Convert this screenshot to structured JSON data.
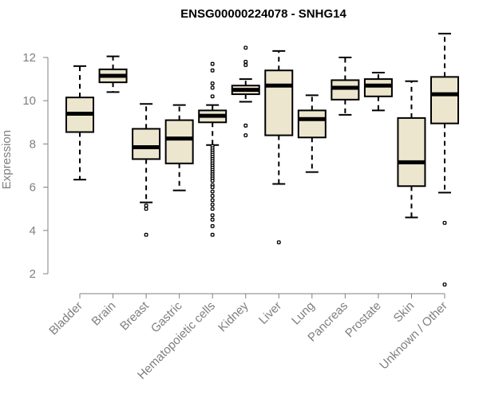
{
  "chart_data": {
    "type": "boxplot",
    "title": "ENSG00000224078 - SNHG14",
    "xlabel": "",
    "ylabel": "Expression",
    "ylim": [
      1.2,
      13.3
    ],
    "yticks": [
      2,
      4,
      6,
      8,
      10,
      12
    ],
    "ytick_labels": [
      "2",
      "4",
      "6",
      "8",
      "10",
      "12"
    ],
    "box_fill": "#ede6cf",
    "stroke_color": "#000000",
    "axis_color": "#808080",
    "categories": [
      "Bladder",
      "Brain",
      "Breast",
      "Gastric",
      "Hematopoietic cells",
      "Kidney",
      "Liver",
      "Lung",
      "Pancreas",
      "Prostate",
      "Skin",
      "Unknown / Other"
    ],
    "boxes": [
      {
        "category": "Bladder",
        "whisker_low": 6.35,
        "q1": 8.55,
        "median": 9.4,
        "q3": 10.15,
        "whisker_high": 11.6,
        "outliers": []
      },
      {
        "category": "Brain",
        "whisker_low": 10.4,
        "q1": 10.85,
        "median": 11.15,
        "q3": 11.45,
        "whisker_high": 12.05,
        "outliers": []
      },
      {
        "category": "Breast",
        "whisker_low": 5.3,
        "q1": 7.3,
        "median": 7.85,
        "q3": 8.7,
        "whisker_high": 9.85,
        "outliers": [
          5.15,
          5.0,
          3.8
        ]
      },
      {
        "category": "Gastric",
        "whisker_low": 5.85,
        "q1": 7.1,
        "median": 8.25,
        "q3": 9.1,
        "whisker_high": 9.8,
        "outliers": []
      },
      {
        "category": "Hematopoietic cells",
        "whisker_low": 7.95,
        "q1": 9.0,
        "median": 9.3,
        "q3": 9.55,
        "whisker_high": 9.8,
        "outliers": [
          11.7,
          11.4,
          10.8,
          10.6,
          10.2,
          7.9,
          7.8,
          7.7,
          7.6,
          7.5,
          7.4,
          7.3,
          7.2,
          7.1,
          7.0,
          6.9,
          6.8,
          6.7,
          6.6,
          6.5,
          6.4,
          6.3,
          6.1,
          6.0,
          5.8,
          5.6,
          5.4,
          5.2,
          5.0,
          4.7,
          4.5,
          4.2,
          3.8
        ]
      },
      {
        "category": "Kidney",
        "whisker_low": 9.95,
        "q1": 10.3,
        "median": 10.5,
        "q3": 10.7,
        "whisker_high": 11.0,
        "outliers": [
          12.45,
          11.8,
          11.65,
          8.85,
          8.4
        ]
      },
      {
        "category": "Liver",
        "whisker_low": 6.15,
        "q1": 8.4,
        "median": 10.7,
        "q3": 11.4,
        "whisker_high": 12.3,
        "outliers": [
          3.45
        ]
      },
      {
        "category": "Lung",
        "whisker_low": 6.7,
        "q1": 8.3,
        "median": 9.15,
        "q3": 9.55,
        "whisker_high": 10.25,
        "outliers": []
      },
      {
        "category": "Pancreas",
        "whisker_low": 9.35,
        "q1": 10.05,
        "median": 10.6,
        "q3": 10.95,
        "whisker_high": 12.0,
        "outliers": []
      },
      {
        "category": "Prostate",
        "whisker_low": 9.55,
        "q1": 10.2,
        "median": 10.7,
        "q3": 11.0,
        "whisker_high": 11.3,
        "outliers": []
      },
      {
        "category": "Skin",
        "whisker_low": 4.6,
        "q1": 6.05,
        "median": 7.15,
        "q3": 9.2,
        "whisker_high": 10.9,
        "outliers": []
      },
      {
        "category": "Unknown / Other",
        "whisker_low": 5.75,
        "q1": 8.95,
        "median": 10.3,
        "q3": 11.1,
        "whisker_high": 13.1,
        "outliers": [
          4.35,
          1.5
        ]
      }
    ]
  }
}
